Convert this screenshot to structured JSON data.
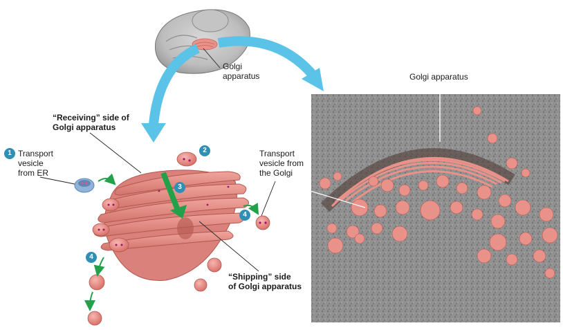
{
  "labels": {
    "cell_golgi": [
      "Golgi",
      "apparatus"
    ],
    "micrograph_golgi": "Golgi apparatus",
    "receiving": [
      "“Receiving” side of",
      "Golgi apparatus"
    ],
    "transport_er": [
      "Transport",
      "vesicle",
      "from ER"
    ],
    "transport_golgi": [
      "Transport",
      "vesicle  from",
      "the Golgi"
    ],
    "shipping": [
      "“Shipping” side",
      "of Golgi apparatus"
    ]
  },
  "steps": [
    "1",
    "2",
    "3",
    "4",
    "4"
  ],
  "colors": {
    "golgi_fill": "#e8928a",
    "golgi_dark": "#c9625a",
    "step_badge": "#2f8fb5",
    "big_arrow": "#5bc2e8",
    "small_arrow": "#23a14a",
    "vesicle_er": "#8fb3d9"
  }
}
